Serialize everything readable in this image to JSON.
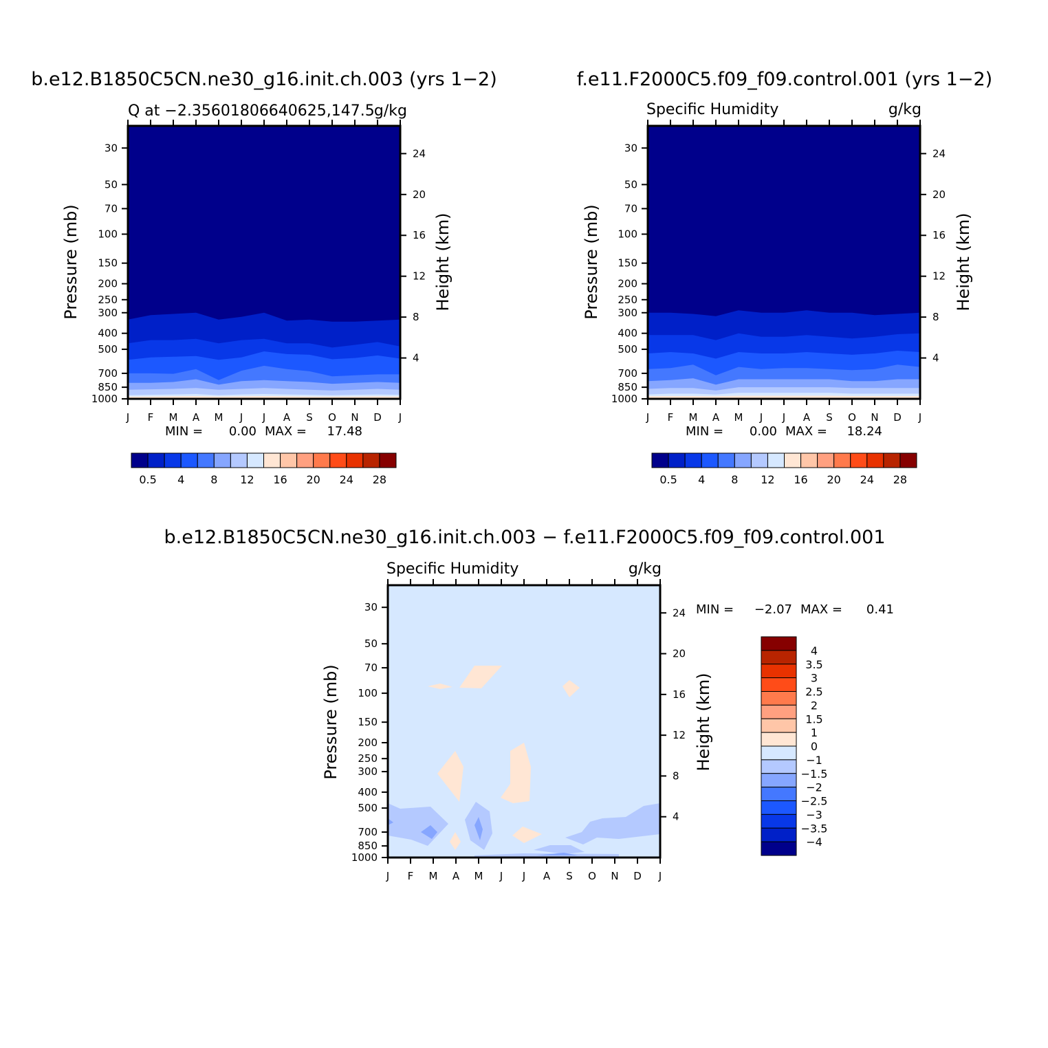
{
  "chart_data": [
    {
      "type": "heatmap",
      "title": "b.e12.B1850C5CN.ne30_g16.init.ch.003 (yrs 1−2)",
      "subtitle_left": "Q at −2.35601806640625,147.5",
      "subtitle_right": "g/kg",
      "ylabel": "Pressure (mb)",
      "ylabel_right": "Height (km)",
      "x_ticks": [
        "J",
        "F",
        "M",
        "A",
        "M",
        "J",
        "J",
        "A",
        "S",
        "O",
        "N",
        "D",
        "J"
      ],
      "pressure_ticks": [
        "30",
        "50",
        "70",
        "100",
        "150",
        "200",
        "250",
        "300",
        "400",
        "500",
        "700",
        "850",
        "1000"
      ],
      "height_ticks": [
        "24",
        "20",
        "16",
        "12",
        "8",
        "4"
      ],
      "stats": {
        "min_label": "MIN =",
        "min": "0.00",
        "max_label": "MAX =",
        "max": "17.48"
      },
      "colorbar": {
        "orientation": "horizontal",
        "labels": [
          "0.5",
          "4",
          "8",
          "12",
          "16",
          "20",
          "24",
          "28"
        ],
        "colors": [
          "#00008b",
          "#0020c8",
          "#0838e8",
          "#1c58ff",
          "#4478ff",
          "#86a6ff",
          "#b4c9ff",
          "#d6e8ff",
          "#ffe6d4",
          "#ffc6a8",
          "#ffa080",
          "#ff7a4c",
          "#ff4c18",
          "#e83200",
          "#b82400",
          "#860000"
        ]
      },
      "contour_bands_pressure_mb": [
        {
          "level": "0.5",
          "boundary": [
            330,
            310,
            305,
            300,
            330,
            318,
            300,
            335,
            330,
            340,
            340,
            335,
            330
          ]
        },
        {
          "level": "2",
          "boundary": [
            460,
            440,
            440,
            432,
            460,
            440,
            432,
            460,
            460,
            488,
            470,
            452,
            480
          ]
        },
        {
          "level": "4",
          "boundary": [
            580,
            560,
            555,
            550,
            580,
            560,
            515,
            535,
            540,
            575,
            565,
            545,
            570
          ]
        },
        {
          "level": "6",
          "boundary": [
            700,
            700,
            705,
            660,
            770,
            675,
            630,
            660,
            680,
            730,
            720,
            710,
            710
          ]
        },
        {
          "level": "8",
          "boundary": [
            800,
            800,
            790,
            760,
            820,
            780,
            770,
            780,
            790,
            810,
            800,
            790,
            800
          ]
        },
        {
          "level": "10",
          "boundary": [
            880,
            875,
            870,
            860,
            880,
            870,
            860,
            870,
            880,
            890,
            880,
            870,
            880
          ]
        },
        {
          "level": "12",
          "boundary": [
            950,
            945,
            940,
            935,
            950,
            940,
            935,
            940,
            945,
            950,
            945,
            940,
            945
          ]
        },
        {
          "level": "14",
          "boundary": [
            970,
            968,
            965,
            962,
            968,
            965,
            962,
            965,
            968,
            970,
            968,
            965,
            968
          ]
        }
      ]
    },
    {
      "type": "heatmap",
      "title": "f.e11.F2000C5.f09_f09.control.001 (yrs 1−2)",
      "subtitle_left": "Specific Humidity",
      "subtitle_right": "g/kg",
      "ylabel": "Pressure (mb)",
      "ylabel_right": "Height (km)",
      "x_ticks": [
        "J",
        "F",
        "M",
        "A",
        "M",
        "J",
        "J",
        "A",
        "S",
        "O",
        "N",
        "D",
        "J"
      ],
      "pressure_ticks": [
        "30",
        "50",
        "70",
        "100",
        "150",
        "200",
        "250",
        "300",
        "400",
        "500",
        "700",
        "850",
        "1000"
      ],
      "height_ticks": [
        "24",
        "20",
        "16",
        "12",
        "8",
        "4"
      ],
      "stats": {
        "min_label": "MIN =",
        "min": "0.00",
        "max_label": "MAX =",
        "max": "18.24"
      },
      "colorbar": {
        "orientation": "horizontal",
        "labels": [
          "0.5",
          "4",
          "8",
          "12",
          "16",
          "20",
          "24",
          "28"
        ],
        "colors": [
          "#00008b",
          "#0020c8",
          "#0838e8",
          "#1c58ff",
          "#4478ff",
          "#86a6ff",
          "#b4c9ff",
          "#d6e8ff",
          "#ffe6d4",
          "#ffc6a8",
          "#ffa080",
          "#ff7a4c",
          "#ff4c18",
          "#e83200",
          "#b82400",
          "#860000"
        ]
      },
      "contour_bands_pressure_mb": [
        {
          "level": "0.5",
          "boundary": [
            300,
            300,
            305,
            315,
            290,
            300,
            300,
            290,
            300,
            300,
            310,
            305,
            300
          ]
        },
        {
          "level": "2",
          "boundary": [
            410,
            410,
            410,
            440,
            400,
            420,
            420,
            410,
            420,
            430,
            420,
            405,
            400
          ]
        },
        {
          "level": "4",
          "boundary": [
            530,
            520,
            530,
            570,
            520,
            530,
            530,
            520,
            530,
            540,
            530,
            510,
            520
          ]
        },
        {
          "level": "6",
          "boundary": [
            660,
            650,
            620,
            720,
            640,
            660,
            650,
            650,
            660,
            670,
            660,
            620,
            640
          ]
        },
        {
          "level": "8",
          "boundary": [
            780,
            770,
            750,
            820,
            760,
            760,
            760,
            760,
            760,
            780,
            780,
            760,
            760
          ]
        },
        {
          "level": "10",
          "boundary": [
            870,
            860,
            860,
            890,
            850,
            850,
            850,
            850,
            850,
            860,
            860,
            860,
            860
          ]
        },
        {
          "level": "12",
          "boundary": [
            940,
            930,
            930,
            940,
            920,
            920,
            920,
            920,
            920,
            930,
            930,
            930,
            930
          ]
        },
        {
          "level": "14",
          "boundary": [
            965,
            962,
            962,
            965,
            958,
            958,
            958,
            958,
            958,
            962,
            962,
            962,
            962
          ]
        }
      ]
    },
    {
      "type": "heatmap",
      "title": "b.e12.B1850C5CN.ne30_g16.init.ch.003 − f.e11.F2000C5.f09_f09.control.001",
      "subtitle_left": "Specific Humidity",
      "subtitle_right": "g/kg",
      "ylabel": "Pressure (mb)",
      "ylabel_right": "Height (km)",
      "x_ticks": [
        "J",
        "F",
        "M",
        "A",
        "M",
        "J",
        "J",
        "A",
        "S",
        "O",
        "N",
        "D",
        "J"
      ],
      "pressure_ticks": [
        "30",
        "50",
        "70",
        "100",
        "150",
        "200",
        "250",
        "300",
        "400",
        "500",
        "700",
        "850",
        "1000"
      ],
      "height_ticks": [
        "24",
        "20",
        "16",
        "12",
        "8",
        "4"
      ],
      "stats": {
        "min_label": "MIN =",
        "min": "−2.07",
        "max_label": "MAX =",
        "max": "0.41"
      },
      "colorbar": {
        "orientation": "vertical",
        "labels": [
          "4",
          "3.5",
          "3",
          "2.5",
          "2",
          "1.5",
          "1",
          "0",
          "−1",
          "−1.5",
          "−2",
          "−2.5",
          "−3",
          "−3.5",
          "−4"
        ],
        "colors": [
          "#860000",
          "#b82400",
          "#e83200",
          "#ff4c18",
          "#ff7a4c",
          "#ffa080",
          "#ffc6a8",
          "#ffe6d4",
          "#d6e8ff",
          "#b4c9ff",
          "#86a6ff",
          "#4478ff",
          "#1c58ff",
          "#0838e8",
          "#0020c8",
          "#00008b"
        ]
      },
      "background_level": "0 to −1"
    }
  ]
}
